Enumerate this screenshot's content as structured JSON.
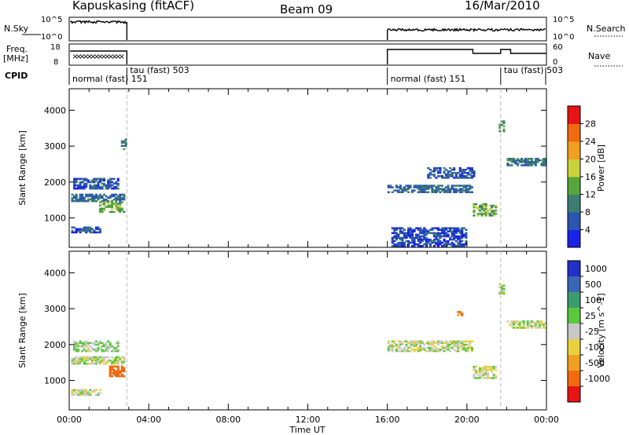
{
  "header": {
    "station": "Kapuskasing (fitACF)",
    "beam": "Beam 09",
    "date": "16/Mar/2010"
  },
  "left_labels": {
    "nsky": "N.Sky",
    "freq_line1": "Freq.",
    "freq_line2": "[MHz]",
    "cpid": "CPID"
  },
  "right_labels": {
    "nsearch": "N.Search",
    "nave": "Nave"
  },
  "strip_ticks": {
    "noise_left": [
      "10^5",
      "10^0"
    ],
    "noise_right": [
      "10^5",
      "10^0"
    ],
    "freq_left": [
      "18",
      "8"
    ],
    "freq_right": [
      "60",
      "0"
    ]
  },
  "cpid_segments": [
    {
      "label": "normal (fast) 151",
      "start": 0.0,
      "end": 2.9
    },
    {
      "label": "tau (fast) 503",
      "start": 2.9,
      "end": 3.1
    },
    {
      "label": "normal (fast) 151",
      "start": 16.0,
      "end": 21.7
    },
    {
      "label": "tau (fast) 503",
      "start": 21.7,
      "end": 24.0
    }
  ],
  "axes": {
    "ylabel": "Slant Range [km]",
    "xlabel": "Time UT",
    "yticks": [
      "1000",
      "2000",
      "3000",
      "4000"
    ],
    "xticks": [
      "00:00",
      "04:00",
      "08:00",
      "12:00",
      "16:00",
      "20:00",
      "00:00"
    ]
  },
  "power_scale": {
    "label": "Power [dB]",
    "ticks": [
      "4",
      "8",
      "12",
      "16",
      "20",
      "24",
      "28"
    ],
    "colors": [
      "#1a22e6",
      "#2a55b0",
      "#3c7d73",
      "#56a63c",
      "#c8d23a",
      "#f0a020",
      "#f06a10",
      "#e61414"
    ]
  },
  "velocity_scale": {
    "label": "Velocity [m s^-1]",
    "ticks": [
      "1000",
      "500",
      "100",
      "25",
      "-25",
      "-100",
      "-500",
      "-1000"
    ],
    "colors": [
      "#2030c8",
      "#3a66b4",
      "#3c9c70",
      "#5ac83c",
      "#c8c8c8",
      "#e8d23c",
      "#f0a020",
      "#f06a10",
      "#e61414"
    ]
  },
  "chart_data": [
    {
      "type": "heatmap",
      "name": "Power",
      "xlabel": "Time UT",
      "ylabel": "Slant Range [km]",
      "xlim": [
        0,
        24
      ],
      "ylim": [
        180,
        4600
      ],
      "cbar_label": "Power [dB]",
      "cbar_range": [
        0,
        30
      ],
      "regions": [
        {
          "t": [
            0.1,
            2.8
          ],
          "r": [
            1450,
            1650
          ],
          "v": 8
        },
        {
          "t": [
            1.5,
            2.8
          ],
          "r": [
            1150,
            1450
          ],
          "v": 14
        },
        {
          "t": [
            0.1,
            1.6
          ],
          "r": [
            580,
            720
          ],
          "v": 6
        },
        {
          "t": [
            0.2,
            2.5
          ],
          "r": [
            1800,
            2100
          ],
          "v": 6
        },
        {
          "t": [
            2.6,
            2.9
          ],
          "r": [
            2900,
            3200
          ],
          "v": 10
        },
        {
          "t": [
            16.0,
            20.3
          ],
          "r": [
            1700,
            1900
          ],
          "v": 8
        },
        {
          "t": [
            20.3,
            21.5
          ],
          "r": [
            1050,
            1400
          ],
          "v": 14
        },
        {
          "t": [
            22.0,
            24.0
          ],
          "r": [
            2450,
            2650
          ],
          "v": 9
        },
        {
          "t": [
            21.6,
            21.9
          ],
          "r": [
            3400,
            3700
          ],
          "v": 12
        },
        {
          "t": [
            18.0,
            20.4
          ],
          "r": [
            2100,
            2400
          ],
          "v": 6
        },
        {
          "t": [
            16.2,
            20.0
          ],
          "r": [
            200,
            700
          ],
          "v": 5
        }
      ]
    },
    {
      "type": "heatmap",
      "name": "Velocity",
      "xlabel": "Time UT",
      "ylabel": "Slant Range [km]",
      "xlim": [
        0,
        24
      ],
      "ylim": [
        180,
        4600
      ],
      "cbar_label": "Velocity [m s^-1]",
      "cbar_range": [
        -1000,
        1000
      ],
      "regions": [
        {
          "t": [
            0.1,
            2.8
          ],
          "r": [
            1450,
            1650
          ],
          "v": 0
        },
        {
          "t": [
            2.0,
            2.8
          ],
          "r": [
            1100,
            1400
          ],
          "v": -600
        },
        {
          "t": [
            0.1,
            1.6
          ],
          "r": [
            580,
            720
          ],
          "v": 0
        },
        {
          "t": [
            0.2,
            2.5
          ],
          "r": [
            1800,
            2100
          ],
          "v": 30
        },
        {
          "t": [
            16.0,
            20.3
          ],
          "r": [
            1800,
            2100
          ],
          "v": 0
        },
        {
          "t": [
            20.3,
            21.5
          ],
          "r": [
            1050,
            1400
          ],
          "v": 0
        },
        {
          "t": [
            22.0,
            24.0
          ],
          "r": [
            2450,
            2650
          ],
          "v": 0
        },
        {
          "t": [
            21.6,
            21.9
          ],
          "r": [
            3400,
            3700
          ],
          "v": 0
        },
        {
          "t": [
            19.5,
            19.8
          ],
          "r": [
            2800,
            2900
          ],
          "v": -500
        }
      ]
    }
  ]
}
